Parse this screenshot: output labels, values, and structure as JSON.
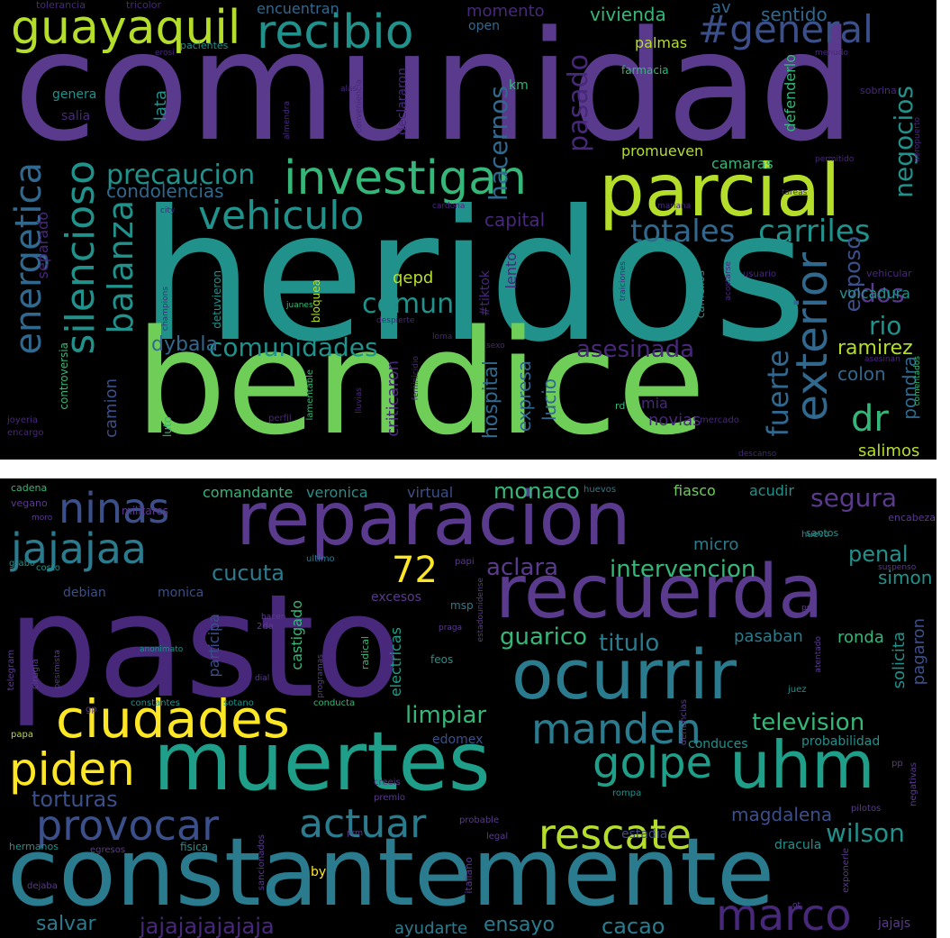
{
  "palette": {
    "purple": "#48287a",
    "violet": "#5a3a8c",
    "indigo": "#3b4f8a",
    "blue": "#31688e",
    "steel": "#2b7b8e",
    "teal": "#21918c",
    "cyan": "#1f9e89",
    "green": "#35b779",
    "lime": "#6ece58",
    "yellowgreen": "#b5de2b",
    "yellow": "#fde725",
    "background": "#000000"
  },
  "top_cloud": {
    "words": [
      {
        "text": "comunidad",
        "c": "violet"
      },
      {
        "text": "heridos",
        "c": "teal"
      },
      {
        "text": "bendice",
        "c": "lime"
      },
      {
        "text": "parcial",
        "c": "yellowgreen"
      },
      {
        "text": "guayaquil",
        "c": "yellowgreen"
      },
      {
        "text": "recibio",
        "c": "teal"
      },
      {
        "text": "#general",
        "c": "indigo"
      },
      {
        "text": "investigan",
        "c": "green"
      },
      {
        "text": "vehiculo",
        "c": "teal"
      },
      {
        "text": "precaucion",
        "c": "teal"
      },
      {
        "text": "condolencias",
        "c": "blue"
      },
      {
        "text": "energetica",
        "c": "blue"
      },
      {
        "text": "silencioso",
        "c": "teal"
      },
      {
        "text": "balanza",
        "c": "teal"
      },
      {
        "text": "comun",
        "c": "teal"
      },
      {
        "text": "comunidades",
        "c": "teal"
      },
      {
        "text": "totales",
        "c": "blue"
      },
      {
        "text": "carriles",
        "c": "teal"
      },
      {
        "text": "exterior",
        "c": "blue"
      },
      {
        "text": "dr",
        "c": "green"
      },
      {
        "text": "asesinada",
        "c": "purple"
      },
      {
        "text": "dos",
        "c": "violet"
      },
      {
        "text": "rio",
        "c": "teal"
      },
      {
        "text": "fuerte",
        "c": "blue"
      },
      {
        "text": "ramirez",
        "c": "yellowgreen"
      },
      {
        "text": "negocios",
        "c": "teal"
      },
      {
        "text": "pasado",
        "c": "purple"
      },
      {
        "text": "hacernos",
        "c": "blue"
      },
      {
        "text": "vivienda",
        "c": "green"
      },
      {
        "text": "sentido",
        "c": "blue"
      },
      {
        "text": "palmas",
        "c": "yellowgreen"
      },
      {
        "text": "promueven",
        "c": "yellowgreen"
      },
      {
        "text": "camaras",
        "c": "green"
      },
      {
        "text": "capital",
        "c": "purple"
      },
      {
        "text": "qepd",
        "c": "yellowgreen"
      },
      {
        "text": "dybala",
        "c": "blue"
      },
      {
        "text": "esposo",
        "c": "indigo"
      },
      {
        "text": "colon",
        "c": "blue"
      },
      {
        "text": "pondra",
        "c": "blue"
      },
      {
        "text": "volcadura",
        "c": "teal"
      },
      {
        "text": "salimos",
        "c": "yellowgreen"
      },
      {
        "text": "momento",
        "c": "purple"
      },
      {
        "text": "encuentran",
        "c": "blue"
      },
      {
        "text": "lata",
        "c": "teal"
      },
      {
        "text": "genera",
        "c": "teal"
      },
      {
        "text": "salia",
        "c": "purple"
      },
      {
        "text": "separado",
        "c": "purple"
      },
      {
        "text": "camion",
        "c": "indigo"
      },
      {
        "text": "expresa",
        "c": "blue"
      },
      {
        "text": "lucio",
        "c": "blue"
      },
      {
        "text": "novias",
        "c": "purple"
      },
      {
        "text": "mia",
        "c": "purple"
      },
      {
        "text": "hospital",
        "c": "blue"
      },
      {
        "text": "criticaron",
        "c": "purple"
      },
      {
        "text": "defenderlo",
        "c": "green"
      },
      {
        "text": "av",
        "c": "blue"
      },
      {
        "text": "km",
        "c": "green"
      },
      {
        "text": "open",
        "c": "blue"
      },
      {
        "text": "farmacia",
        "c": "green"
      },
      {
        "text": "lento",
        "c": "purple"
      },
      {
        "text": "#tiktok",
        "c": "purple"
      },
      {
        "text": "declararon",
        "c": "purple"
      },
      {
        "text": "bloquea",
        "c": "yellowgreen"
      },
      {
        "text": "detuvieron",
        "c": "teal"
      },
      {
        "text": "controversia",
        "c": "green"
      },
      {
        "text": "tolerancia",
        "c": "purple"
      },
      {
        "text": "tricolor",
        "c": "purple"
      },
      {
        "text": "pacientes",
        "c": "teal"
      },
      {
        "text": "sobrina",
        "c": "purple"
      },
      {
        "text": "vehicular",
        "c": "purple"
      },
      {
        "text": "usuario",
        "c": "purple"
      },
      {
        "text": "mercado",
        "c": "purple"
      },
      {
        "text": "luto",
        "c": "green"
      },
      {
        "text": "perfil",
        "c": "purple"
      },
      {
        "text": "joyeria",
        "c": "purple"
      },
      {
        "text": "encargo",
        "c": "purple"
      },
      {
        "text": "rd",
        "c": "green"
      },
      {
        "text": "camellos",
        "c": "teal"
      },
      {
        "text": "mariana",
        "c": "purple"
      },
      {
        "text": "cardona",
        "c": "purple"
      },
      {
        "text": "city",
        "c": "purple"
      },
      {
        "text": "champions",
        "c": "purple"
      },
      {
        "text": "juanes",
        "c": "green"
      },
      {
        "text": "despierte",
        "c": "purple"
      },
      {
        "text": "almendra",
        "c": "purple"
      },
      {
        "text": "conveniencia",
        "c": "purple"
      },
      {
        "text": "traiciones",
        "c": "purple"
      },
      {
        "text": "permitido",
        "c": "purple"
      },
      {
        "text": "tareas",
        "c": "purple"
      },
      {
        "text": "asesinan",
        "c": "purple"
      },
      {
        "text": "comentados",
        "c": "green"
      },
      {
        "text": "lamentable",
        "c": "green"
      },
      {
        "text": "sexo",
        "c": "purple"
      },
      {
        "text": "feminicidio",
        "c": "purple"
      },
      {
        "text": "alas",
        "c": "purple"
      },
      {
        "text": "erosi",
        "c": "purple"
      },
      {
        "text": "menudo",
        "c": "purple"
      },
      {
        "text": "acostarse",
        "c": "purple"
      },
      {
        "text": "aeropuerto",
        "c": "purple"
      },
      {
        "text": "descanso",
        "c": "purple"
      },
      {
        "text": "lluvias",
        "c": "purple"
      },
      {
        "text": "loma",
        "c": "purple"
      }
    ]
  },
  "bottom_cloud": {
    "words": [
      {
        "text": "pasto",
        "c": "purple"
      },
      {
        "text": "constantemente",
        "c": "steel"
      },
      {
        "text": "muertes",
        "c": "cyan"
      },
      {
        "text": "reparacion",
        "c": "violet"
      },
      {
        "text": "recuerda",
        "c": "violet"
      },
      {
        "text": "ocurrir",
        "c": "steel"
      },
      {
        "text": "ciudades",
        "c": "yellow"
      },
      {
        "text": "uhm",
        "c": "cyan"
      },
      {
        "text": "golpe",
        "c": "cyan"
      },
      {
        "text": "piden",
        "c": "yellow"
      },
      {
        "text": "manden",
        "c": "steel"
      },
      {
        "text": "jajajaa",
        "c": "steel"
      },
      {
        "text": "ninas",
        "c": "indigo"
      },
      {
        "text": "72",
        "c": "yellow"
      },
      {
        "text": "provocar",
        "c": "indigo"
      },
      {
        "text": "actuar",
        "c": "steel"
      },
      {
        "text": "rescate",
        "c": "yellowgreen"
      },
      {
        "text": "marco",
        "c": "purple"
      },
      {
        "text": "torturas",
        "c": "indigo"
      },
      {
        "text": "cucuta",
        "c": "steel"
      },
      {
        "text": "aclara",
        "c": "violet"
      },
      {
        "text": "intervencion",
        "c": "green"
      },
      {
        "text": "penal",
        "c": "teal"
      },
      {
        "text": "segura",
        "c": "violet"
      },
      {
        "text": "monaco",
        "c": "green"
      },
      {
        "text": "guarico",
        "c": "green"
      },
      {
        "text": "titulo",
        "c": "steel"
      },
      {
        "text": "limpiar",
        "c": "green"
      },
      {
        "text": "television",
        "c": "green"
      },
      {
        "text": "wilson",
        "c": "teal"
      },
      {
        "text": "cacao",
        "c": "steel"
      },
      {
        "text": "salvar",
        "c": "steel"
      },
      {
        "text": "ensayo",
        "c": "steel"
      },
      {
        "text": "jajajajajajaja",
        "c": "purple"
      },
      {
        "text": "ayudarte",
        "c": "steel"
      },
      {
        "text": "magdalena",
        "c": "indigo"
      },
      {
        "text": "pasaban",
        "c": "steel"
      },
      {
        "text": "ronda",
        "c": "green"
      },
      {
        "text": "simon",
        "c": "teal"
      },
      {
        "text": "solicita",
        "c": "teal"
      },
      {
        "text": "pagaron",
        "c": "indigo"
      },
      {
        "text": "comandante",
        "c": "green"
      },
      {
        "text": "veronica",
        "c": "teal"
      },
      {
        "text": "virtual",
        "c": "indigo"
      },
      {
        "text": "fiasco",
        "c": "lime"
      },
      {
        "text": "acudir",
        "c": "teal"
      },
      {
        "text": "micro",
        "c": "steel"
      },
      {
        "text": "excesos",
        "c": "violet"
      },
      {
        "text": "monica",
        "c": "indigo"
      },
      {
        "text": "debian",
        "c": "indigo"
      },
      {
        "text": "castigado",
        "c": "green"
      },
      {
        "text": "electricas",
        "c": "cyan"
      },
      {
        "text": "participa",
        "c": "indigo"
      },
      {
        "text": "edomex",
        "c": "indigo"
      },
      {
        "text": "probabilidad",
        "c": "teal"
      },
      {
        "text": "conduces",
        "c": "teal"
      },
      {
        "text": "estadia",
        "c": "indigo"
      },
      {
        "text": "dracula",
        "c": "teal"
      },
      {
        "text": "by",
        "c": "yellow"
      },
      {
        "text": "fisica",
        "c": "teal"
      },
      {
        "text": "hermanos",
        "c": "teal"
      },
      {
        "text": "militares",
        "c": "violet"
      },
      {
        "text": "cadena",
        "c": "green"
      },
      {
        "text": "vegano",
        "c": "violet"
      },
      {
        "text": "moro",
        "c": "violet"
      },
      {
        "text": "2da",
        "c": "violet"
      },
      {
        "text": "msp",
        "c": "steel"
      },
      {
        "text": "feos",
        "c": "teal"
      },
      {
        "text": "radical",
        "c": "green"
      },
      {
        "text": "huevos",
        "c": "steel"
      },
      {
        "text": "santos",
        "c": "teal"
      },
      {
        "text": "encabeza",
        "c": "violet"
      },
      {
        "text": "suspenso",
        "c": "violet"
      },
      {
        "text": "costo",
        "c": "teal"
      },
      {
        "text": "grabo",
        "c": "teal"
      },
      {
        "text": "papi",
        "c": "violet"
      },
      {
        "text": "ultimo",
        "c": "steel"
      },
      {
        "text": "constantes",
        "c": "teal"
      },
      {
        "text": "sotano",
        "c": "teal"
      },
      {
        "text": "conducta",
        "c": "green"
      },
      {
        "text": "papa",
        "c": "yellowgreen"
      },
      {
        "text": "creeis",
        "c": "violet"
      },
      {
        "text": "premio",
        "c": "violet"
      },
      {
        "text": "probable",
        "c": "violet"
      },
      {
        "text": "legal",
        "c": "violet"
      },
      {
        "text": "juez",
        "c": "teal"
      },
      {
        "text": "denuncias",
        "c": "violet"
      },
      {
        "text": "anonimato",
        "c": "teal"
      },
      {
        "text": "telegram",
        "c": "violet"
      },
      {
        "text": "cirugia",
        "c": "violet"
      },
      {
        "text": "egresos",
        "c": "violet"
      },
      {
        "text": "dejaba",
        "c": "violet"
      },
      {
        "text": "italiano",
        "c": "violet"
      },
      {
        "text": "exponerle",
        "c": "violet"
      },
      {
        "text": "negativas",
        "c": "violet"
      },
      {
        "text": "pilotos",
        "c": "violet"
      },
      {
        "text": "jajajs",
        "c": "violet"
      },
      {
        "text": "rompa",
        "c": "teal"
      },
      {
        "text": "huevo",
        "c": "teal"
      },
      {
        "text": "sancionados",
        "c": "violet"
      },
      {
        "text": "hacen",
        "c": "violet"
      },
      {
        "text": "programas",
        "c": "violet"
      },
      {
        "text": "praga",
        "c": "violet"
      },
      {
        "text": "atentado",
        "c": "violet"
      },
      {
        "text": "pesimista",
        "c": "violet"
      },
      {
        "text": "estadounidense",
        "c": "violet"
      },
      {
        "text": "gp",
        "c": "violet"
      },
      {
        "text": "dial",
        "c": "violet"
      },
      {
        "text": "ot",
        "c": "violet"
      },
      {
        "text": "pp",
        "c": "violet"
      },
      {
        "text": "ps",
        "c": "violet"
      },
      {
        "text": "prm",
        "c": "violet"
      }
    ]
  }
}
